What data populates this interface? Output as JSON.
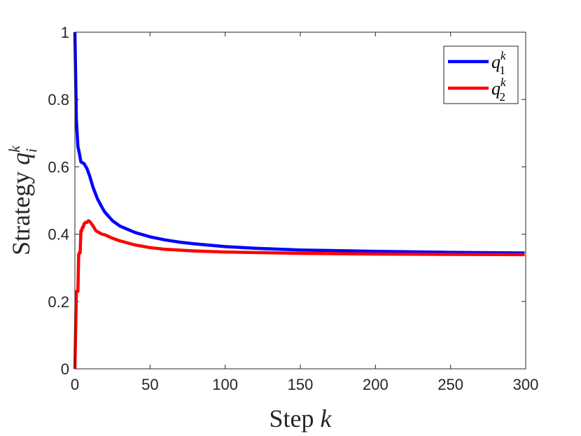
{
  "chart_data": {
    "type": "line",
    "xlabel": {
      "text": "Step ",
      "var": "k"
    },
    "ylabel": {
      "text": "Strategy ",
      "var": "q",
      "sub": "i",
      "sup": "k"
    },
    "xlim": [
      0,
      300
    ],
    "ylim": [
      0,
      1
    ],
    "xticks": [
      "0",
      "50",
      "100",
      "150",
      "200",
      "250",
      "300"
    ],
    "yticks": [
      "0",
      "0.2",
      "0.4",
      "0.6",
      "0.8",
      "1"
    ],
    "grid": false,
    "legend_position": "top-right",
    "series": [
      {
        "name": "q_1^k",
        "label": {
          "var": "q",
          "sub": "1",
          "sup": "k"
        },
        "color": "#0000ff",
        "x": [
          0,
          1,
          2,
          3,
          4,
          5,
          6,
          8,
          10,
          12,
          15,
          18,
          20,
          25,
          30,
          40,
          50,
          60,
          70,
          80,
          100,
          120,
          150,
          200,
          250,
          300
        ],
        "y": [
          1.0,
          0.74,
          0.66,
          0.64,
          0.615,
          0.612,
          0.61,
          0.595,
          0.57,
          0.54,
          0.505,
          0.48,
          0.465,
          0.44,
          0.424,
          0.405,
          0.392,
          0.383,
          0.376,
          0.371,
          0.363,
          0.358,
          0.353,
          0.349,
          0.346,
          0.344
        ]
      },
      {
        "name": "q_2^k",
        "label": {
          "var": "q",
          "sub": "2",
          "sup": "k"
        },
        "color": "#ff0000",
        "x": [
          0,
          1,
          1.5,
          2,
          2.5,
          3,
          3.5,
          4,
          4.5,
          5,
          5.5,
          6,
          7,
          8,
          9,
          10,
          12,
          14,
          16,
          18,
          20,
          25,
          30,
          40,
          50,
          60,
          80,
          100,
          150,
          200,
          250,
          300
        ],
        "y": [
          0.0,
          0.23,
          0.23,
          0.23,
          0.34,
          0.345,
          0.345,
          0.41,
          0.41,
          0.42,
          0.42,
          0.43,
          0.435,
          0.435,
          0.44,
          0.437,
          0.425,
          0.41,
          0.405,
          0.4,
          0.398,
          0.388,
          0.38,
          0.368,
          0.36,
          0.355,
          0.35,
          0.347,
          0.343,
          0.341,
          0.34,
          0.339
        ]
      }
    ]
  }
}
